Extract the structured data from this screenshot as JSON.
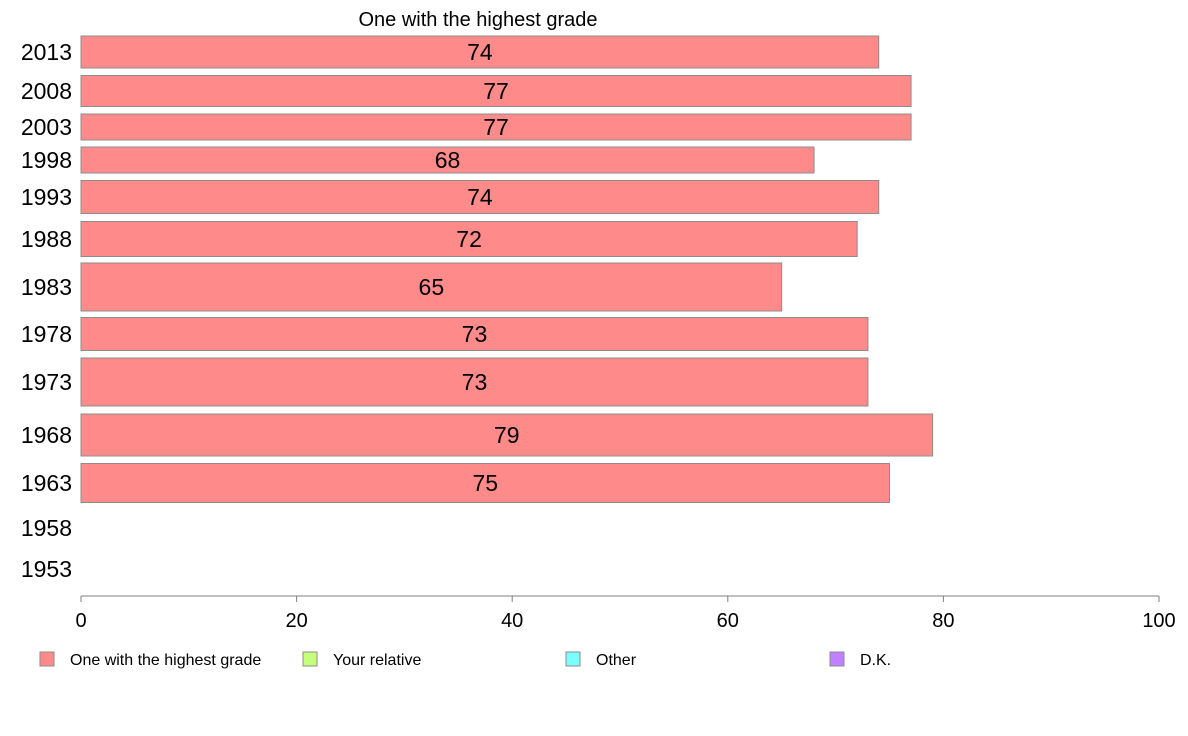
{
  "chart_data": {
    "type": "bar",
    "orientation": "horizontal",
    "title": "One with the highest grade",
    "xlabel": "",
    "ylabel": "",
    "xlim": [
      0,
      100
    ],
    "x_ticks": [
      "0",
      "20",
      "40",
      "60",
      "80",
      "100"
    ],
    "grid": false,
    "legend_position": "bottom",
    "categories": [
      "2013",
      "2008",
      "2003",
      "1998",
      "1993",
      "1988",
      "1983",
      "1978",
      "1973",
      "1968",
      "1963",
      "1958",
      "1953"
    ],
    "series": [
      {
        "name": "One with the highest grade",
        "color": "#ff8a8a",
        "values": [
          74,
          77,
          77,
          68,
          74,
          72,
          65,
          73,
          73,
          79,
          75,
          null,
          null
        ]
      },
      {
        "name": "Your relative",
        "color": "#c6ff7a",
        "values": [
          null,
          null,
          null,
          null,
          null,
          null,
          null,
          null,
          null,
          null,
          null,
          null,
          null
        ]
      },
      {
        "name": "Other",
        "color": "#7affff",
        "values": [
          null,
          null,
          null,
          null,
          null,
          null,
          null,
          null,
          null,
          null,
          null,
          null,
          null
        ]
      },
      {
        "name": "D.K.",
        "color": "#c080ff",
        "values": [
          null,
          null,
          null,
          null,
          null,
          null,
          null,
          null,
          null,
          null,
          null,
          null,
          null
        ]
      }
    ]
  }
}
